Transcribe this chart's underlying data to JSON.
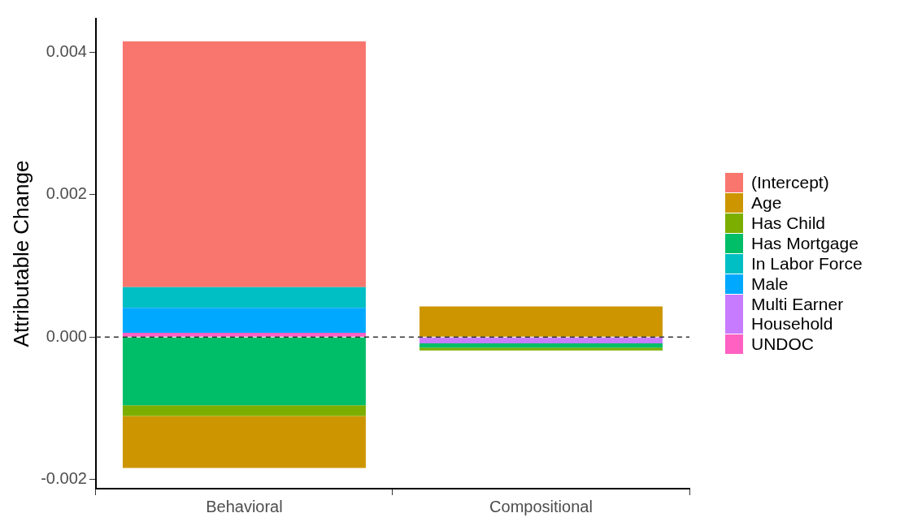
{
  "chart_data": {
    "type": "bar",
    "ylabel": "Attributable Change",
    "categories": [
      "Behavioral",
      "Compositional"
    ],
    "stacked": true,
    "series": [
      {
        "name": "UNDOC",
        "color": "#ff61c3",
        "values": [
          6e-05,
          0
        ]
      },
      {
        "name": "Multi Earner Household",
        "color": "#c77cff",
        "values": [
          0,
          -9e-05
        ]
      },
      {
        "name": "Male",
        "color": "#00a9ff",
        "values": [
          0.00035,
          0
        ]
      },
      {
        "name": "In Labor Force",
        "color": "#00bfc4",
        "values": [
          0.00029,
          0
        ]
      },
      {
        "name": "Has Mortgage",
        "color": "#00be67",
        "values": [
          -0.00096,
          -6e-05
        ]
      },
      {
        "name": "Has Child",
        "color": "#7cae00",
        "values": [
          -0.00015,
          -4e-05
        ]
      },
      {
        "name": "Age",
        "color": "#cd9600",
        "values": [
          -0.00073,
          0.00043
        ]
      },
      {
        "name": "(Intercept)",
        "color": "#f8766d",
        "values": [
          0.00345,
          0
        ]
      }
    ],
    "ylim": [
      -0.00213,
      0.00447
    ],
    "yticks": [
      {
        "value": -0.002,
        "label": "-0.002"
      },
      {
        "value": 0,
        "label": "0.000"
      },
      {
        "value": 0.002,
        "label": "0.002"
      },
      {
        "value": 0.004,
        "label": "0.004"
      }
    ],
    "ref_lines": [
      {
        "axis": "y",
        "value": 0,
        "color": "#333333",
        "line_style": "dashed"
      }
    ],
    "grid": false,
    "legend": "right"
  }
}
